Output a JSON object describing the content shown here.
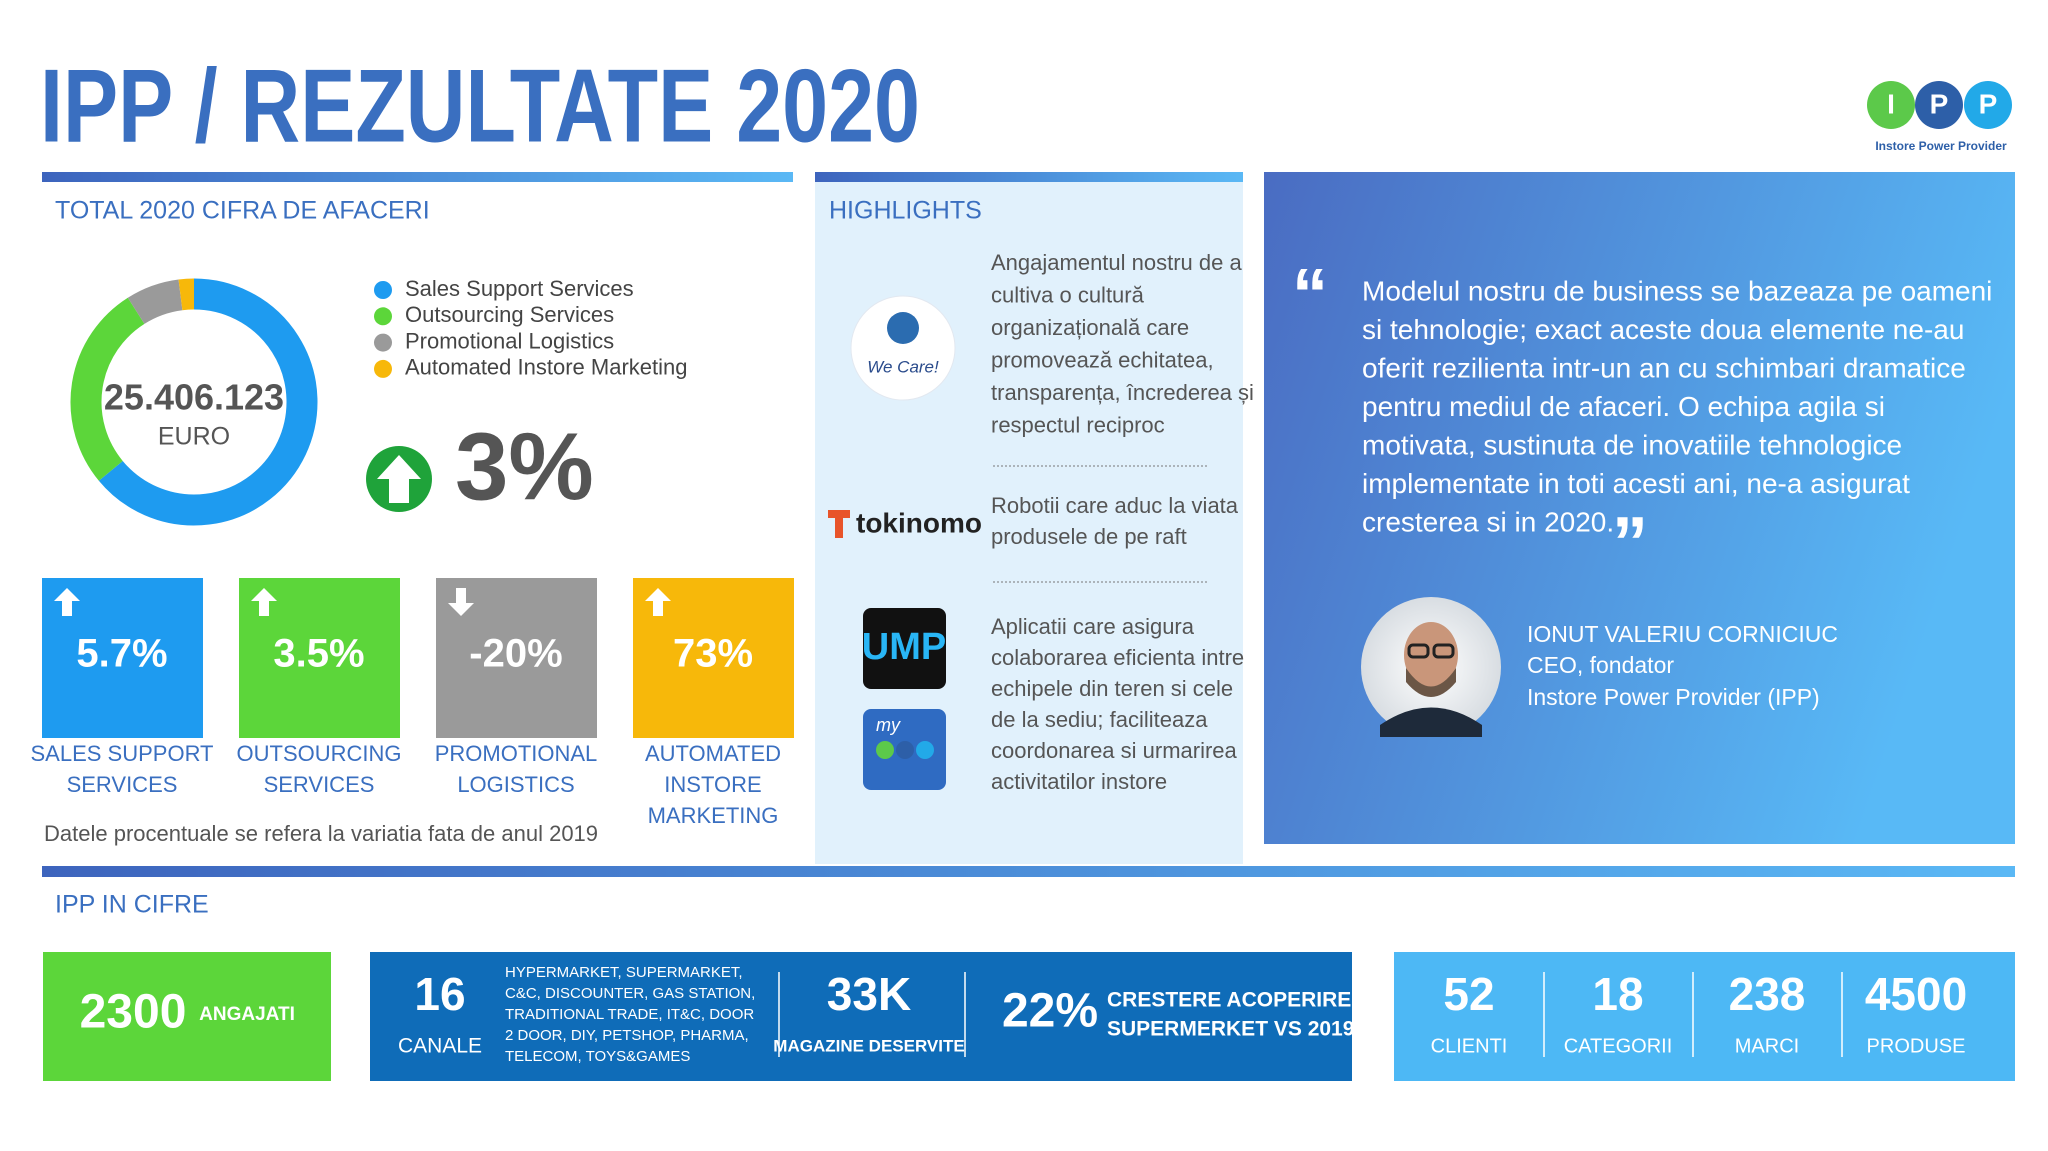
{
  "header": {
    "title": "IPP / REZULTATE 2020",
    "logo_letters": [
      "I",
      "P",
      "P"
    ],
    "logo_text": "Instore Power Provider"
  },
  "chart_data": {
    "type": "pie",
    "hole": true,
    "title": "TOTAL 2020 CIFRA DE AFACERI",
    "categories": [
      "Sales Support Services",
      "Outsourcing Services",
      "Promotional Logistics",
      "Automated Instore Marketing"
    ],
    "values": [
      64,
      27,
      7,
      2
    ],
    "colors": [
      "#1e9bf0",
      "#5cd63a",
      "#9a9a9a",
      "#f7b80a"
    ],
    "center_value": "25.406.123",
    "center_unit": "EURO"
  },
  "growth": "3%",
  "segments": [
    {
      "value": "5.7%",
      "direction": "up",
      "color": "#1e9bf0",
      "label_lines": [
        "SALES SUPPORT",
        "SERVICES"
      ]
    },
    {
      "value": "3.5%",
      "direction": "up",
      "color": "#5cd63a",
      "label_lines": [
        "OUTSOURCING",
        "SERVICES"
      ]
    },
    {
      "value": "-20%",
      "direction": "down",
      "color": "#9a9a9a",
      "label_lines": [
        "PROMOTIONAL",
        "LOGISTICS"
      ]
    },
    {
      "value": "73%",
      "direction": "up",
      "color": "#f7b80a",
      "label_lines": [
        "AUTOMATED",
        "INSTORE",
        "MARKETING"
      ]
    }
  ],
  "footnote": "Datele procentuale se refera la variatia fata de anul 2019",
  "highlights": {
    "heading": "HIGHLIGHTS",
    "items": [
      {
        "lines": [
          "Angajamentul nostru de a",
          "cultiva o cultură",
          "organizațională care",
          "promovează echitatea,",
          "transparența, încrederea și",
          "respectul reciproc"
        ]
      },
      {
        "lines": [
          "Robotii care aduc la viata",
          "produsele de pe raft"
        ]
      },
      {
        "lines": [
          "Aplicatii care asigura",
          "colaborarea eficienta intre",
          "echipele din teren si cele",
          "de la sediu; faciliteaza",
          "coordonarea si urmarirea",
          "activitatilor instore"
        ]
      }
    ],
    "logos": {
      "wecare": "We Care!",
      "tokinomo": "tokinomo",
      "ump": "UMP",
      "myipp": "my"
    }
  },
  "quote": {
    "lines": [
      "Modelul nostru de business se bazeaza pe oameni",
      "si tehnologie; exact aceste doua elemente ne-au",
      "oferit rezilienta intr-un an cu schimbari dramatice",
      "pentru mediul de afaceri. O echipa agila si",
      "motivata, sustinuta de inovatiile tehnologice",
      "implementate in toti acesti ani, ne-a asigurat",
      "cresterea si in 2020."
    ],
    "person": {
      "name": "IONUT VALERIU CORNICIUC",
      "role": "CEO, fondator",
      "company": "Instore Power Provider (IPP)"
    }
  },
  "figures": {
    "heading": "IPP IN CIFRE",
    "employees": {
      "value": "2300",
      "label": "ANGAJATI"
    },
    "channels": {
      "value": "16",
      "label": "CANALE",
      "list": [
        "HYPERMARKET,  SUPERMARKET,",
        "C&C, DISCOUNTER, GAS STATION,",
        "TRADITIONAL TRADE, IT&C, DOOR",
        "2 DOOR, DIY, PETSHOP, PHARMA,",
        "TELECOM, TOYS&GAMES"
      ]
    },
    "stores": {
      "value": "33K",
      "label": "MAGAZINE DESERVITE"
    },
    "coverage": {
      "value": "22%",
      "label_lines": [
        "CRESTERE ACOPERIRE",
        "SUPERMERKET VS 2019"
      ]
    },
    "stats": [
      {
        "value": "52",
        "label": "CLIENTI"
      },
      {
        "value": "18",
        "label": "CATEGORII"
      },
      {
        "value": "238",
        "label": "MARCI"
      },
      {
        "value": "4500",
        "label": "PRODUSE"
      }
    ]
  }
}
